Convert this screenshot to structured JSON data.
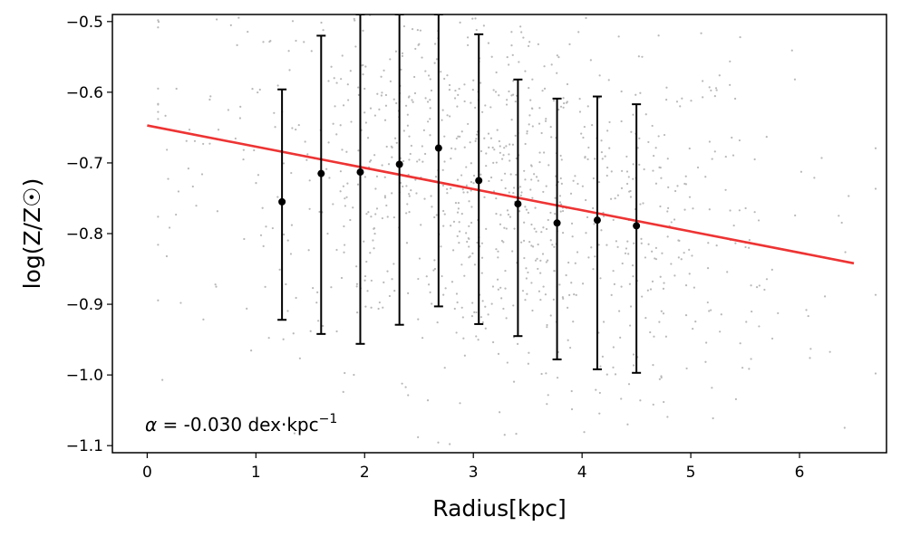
{
  "chart_data": {
    "type": "scatter",
    "xlabel": "Radius[kpc]",
    "ylabel": "log(Z/Z☉)",
    "xlim": [
      -0.32,
      6.8
    ],
    "ylim": [
      -1.11,
      -0.49
    ],
    "xticks": [
      0,
      1,
      2,
      3,
      4,
      5,
      6
    ],
    "yticks": [
      -0.5,
      -0.6,
      -0.7,
      -0.8,
      -0.9,
      -1.0,
      -1.1
    ],
    "xtick_labels": [
      "0",
      "1",
      "2",
      "3",
      "4",
      "5",
      "6"
    ],
    "ytick_labels": [
      "−0.5",
      "−0.6",
      "−0.7",
      "−0.8",
      "−0.9",
      "−1.0",
      "−1.1"
    ],
    "binned_points": {
      "x": [
        1.24,
        1.6,
        1.96,
        2.32,
        2.68,
        3.05,
        3.41,
        3.77,
        4.14,
        4.5
      ],
      "y": [
        -0.755,
        -0.715,
        -0.713,
        -0.702,
        -0.679,
        -0.725,
        -0.758,
        -0.785,
        -0.781,
        -0.789
      ],
      "yerr_lower": [
        -0.922,
        -0.942,
        -0.956,
        -0.929,
        -0.903,
        -0.928,
        -0.945,
        -0.978,
        -0.992,
        -0.997
      ],
      "yerr_upper": [
        -0.596,
        -0.52,
        -0.49,
        -0.49,
        -0.49,
        -0.518,
        -0.582,
        -0.609,
        -0.606,
        -0.617
      ],
      "color": "#000000"
    },
    "fit_line": {
      "x": [
        0,
        6.5
      ],
      "y": [
        -0.647,
        -0.842
      ],
      "color": "#ee3333",
      "slope": -0.03
    },
    "scatter_cloud": {
      "color": "#b8b8b8",
      "x_range": [
        0.1,
        6.7
      ],
      "y_range": [
        -1.1,
        -0.5
      ]
    },
    "annotation": {
      "alpha_symbol": "α",
      "text": " = -0.030 dex·kpc",
      "superscript": "−1"
    },
    "grid": false,
    "legend": "none"
  }
}
